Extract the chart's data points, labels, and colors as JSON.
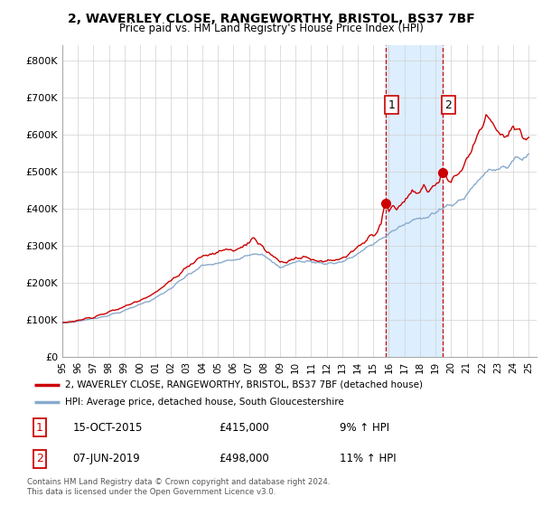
{
  "title": "2, WAVERLEY CLOSE, RANGEWORTHY, BRISTOL, BS37 7BF",
  "subtitle": "Price paid vs. HM Land Registry's House Price Index (HPI)",
  "title_fontsize": 10,
  "subtitle_fontsize": 8.5,
  "ylabel_ticks": [
    "£0",
    "£100K",
    "£200K",
    "£300K",
    "£400K",
    "£500K",
    "£600K",
    "£700K",
    "£800K"
  ],
  "ytick_values": [
    0,
    100000,
    200000,
    300000,
    400000,
    500000,
    600000,
    700000,
    800000
  ],
  "ylim": [
    0,
    840000
  ],
  "xlim_start": 1995.0,
  "xlim_end": 2025.5,
  "xtick_years": [
    1995,
    1996,
    1997,
    1998,
    1999,
    2000,
    2001,
    2002,
    2003,
    2004,
    2005,
    2006,
    2007,
    2008,
    2009,
    2010,
    2011,
    2012,
    2013,
    2014,
    2015,
    2016,
    2017,
    2018,
    2019,
    2020,
    2021,
    2022,
    2023,
    2024,
    2025
  ],
  "purchase1_x": 2015.79,
  "purchase1_y": 415000,
  "purchase2_x": 2019.44,
  "purchase2_y": 498000,
  "shade_color": "#ddeeff",
  "purchase_color": "#cc0000",
  "hpi_color": "#88aacc",
  "legend1_text": "2, WAVERLEY CLOSE, RANGEWORTHY, BRISTOL, BS37 7BF (detached house)",
  "legend2_text": "HPI: Average price, detached house, South Gloucestershire",
  "note1_label": "1",
  "note1_date": "15-OCT-2015",
  "note1_price": "£415,000",
  "note1_hpi": "9% ↑ HPI",
  "note2_label": "2",
  "note2_date": "07-JUN-2019",
  "note2_price": "£498,000",
  "note2_hpi": "11% ↑ HPI",
  "copyright": "Contains HM Land Registry data © Crown copyright and database right 2024.\nThis data is licensed under the Open Government Licence v3.0."
}
